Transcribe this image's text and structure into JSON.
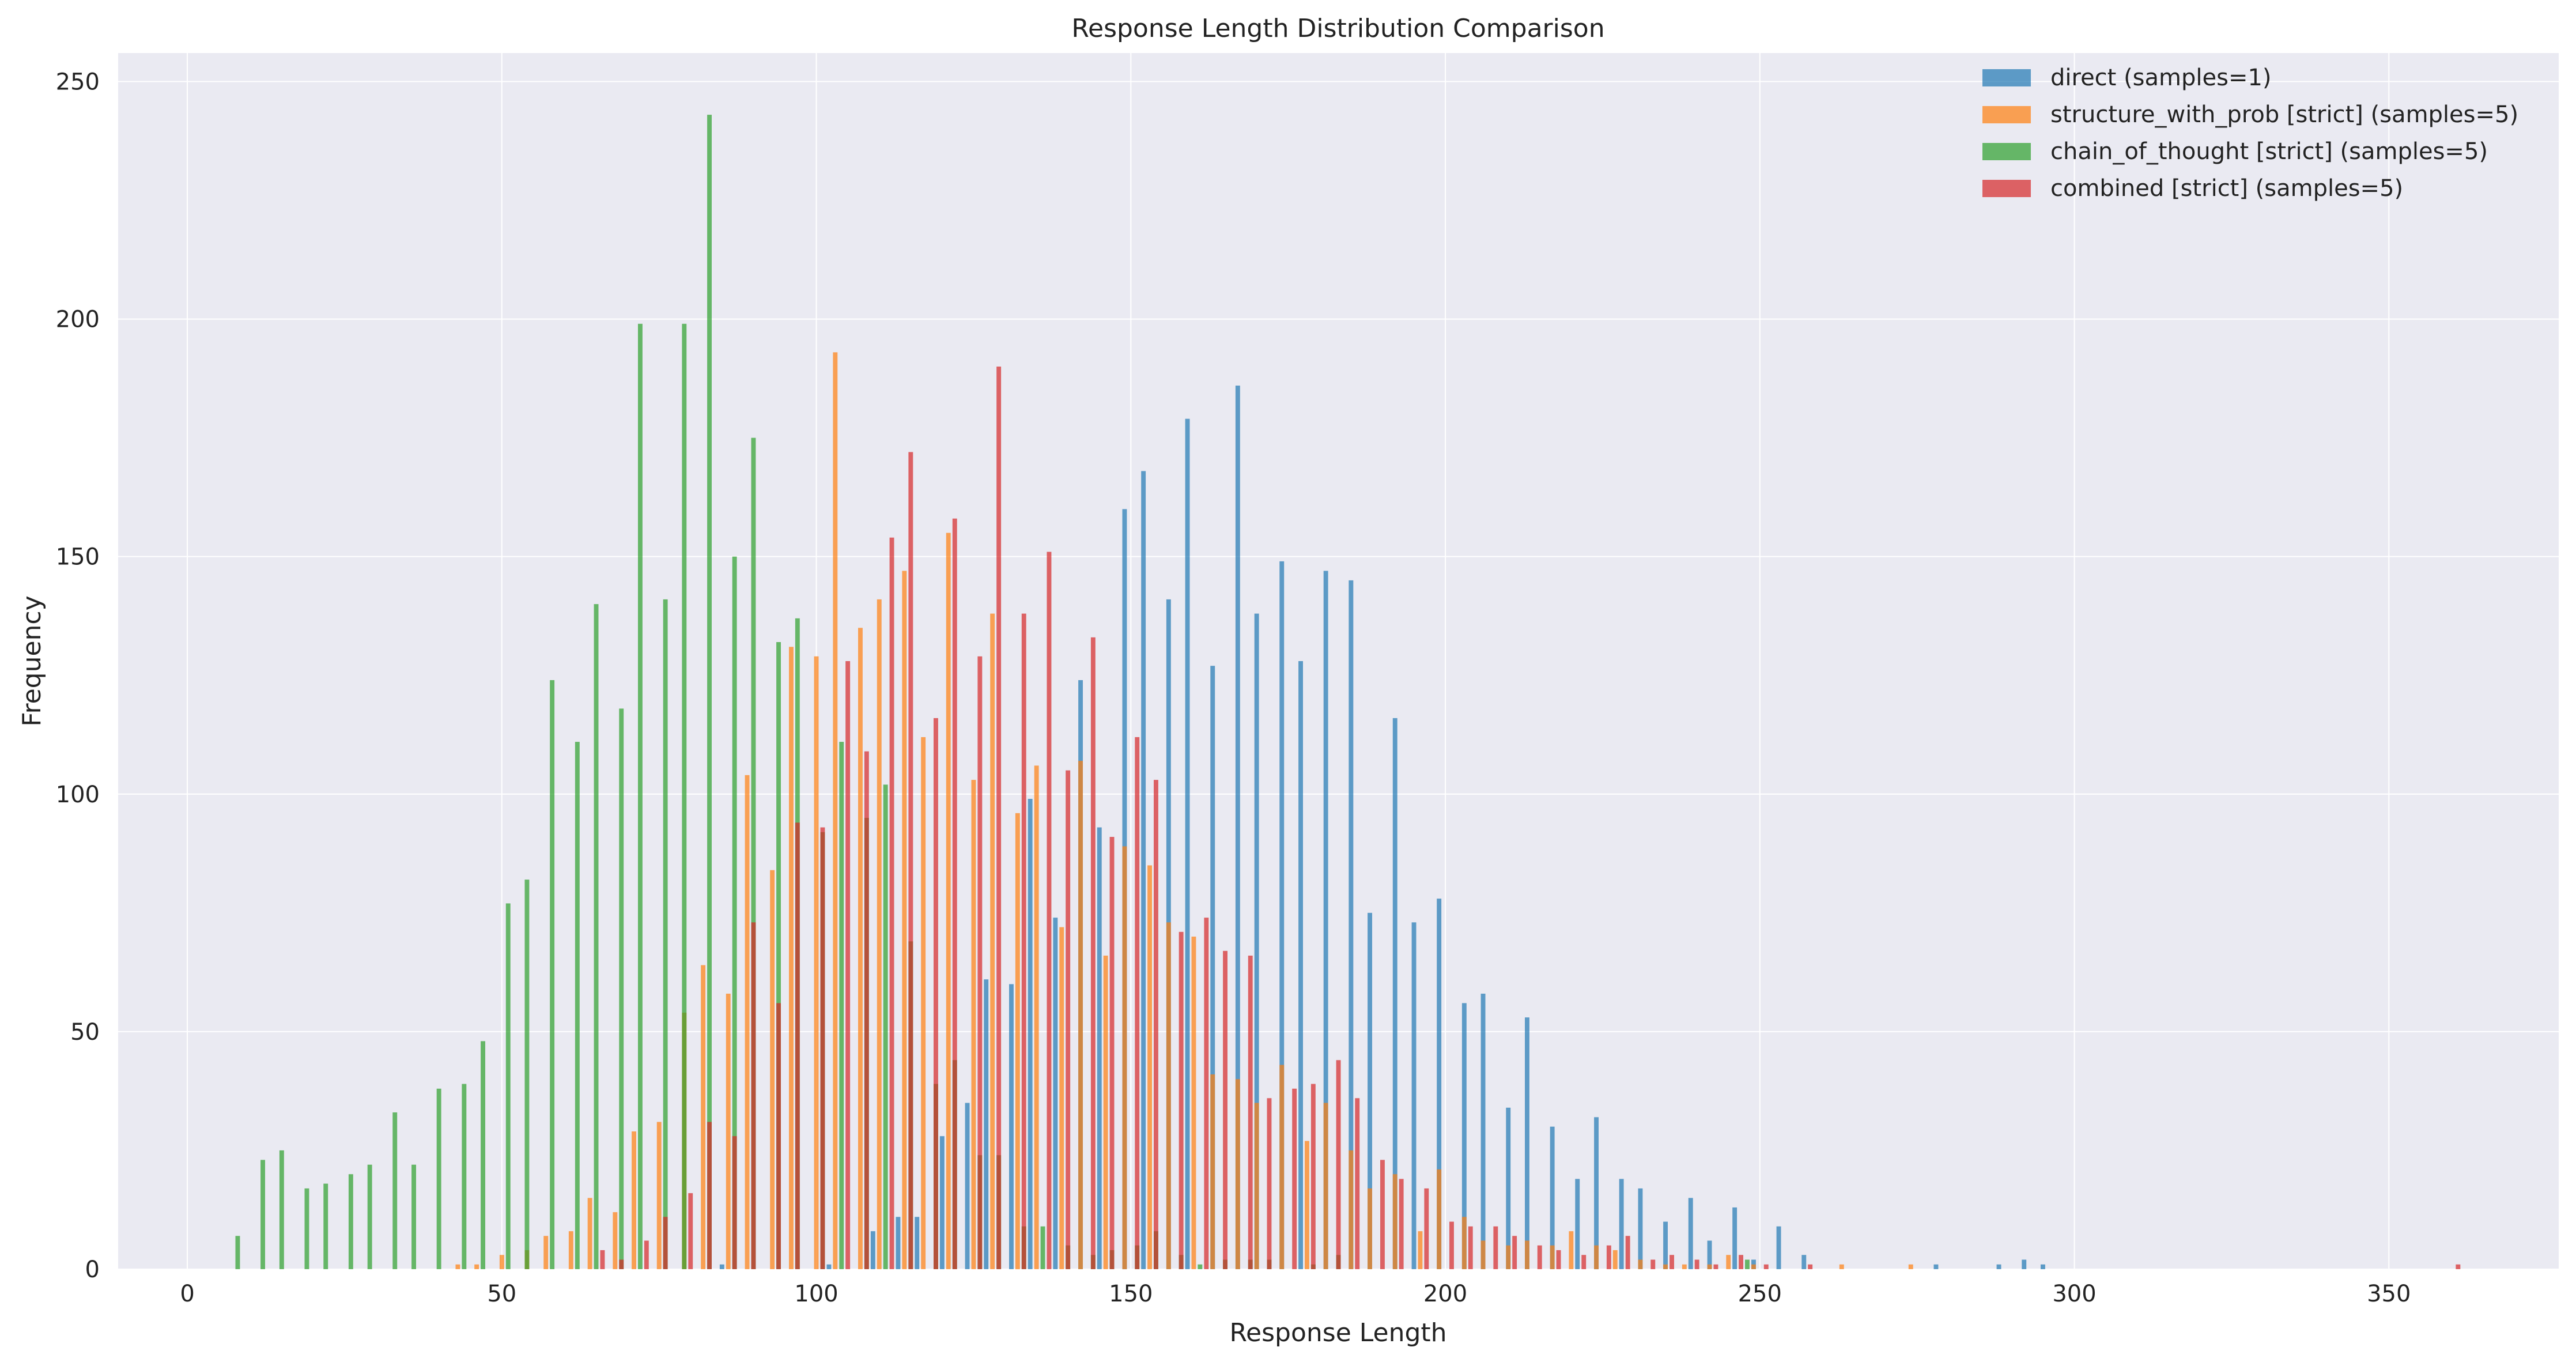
{
  "chart_data": {
    "type": "bar",
    "title": "Response Length Distribution Comparison",
    "xlabel": "Response Length",
    "ylabel": "Frequency",
    "xlim": [
      -11,
      377
    ],
    "ylim": [
      0,
      256
    ],
    "xticks": [
      0,
      50,
      100,
      150,
      200,
      250,
      300,
      350
    ],
    "yticks": [
      0,
      50,
      100,
      150,
      200,
      250
    ],
    "grid": true,
    "legend_position": "top-right",
    "bin_width": 3.6,
    "series": [
      {
        "name": "direct (samples=1)",
        "color": "#1f77b4",
        "points": [
          [
            85,
            1
          ],
          [
            102,
            1
          ],
          [
            109,
            8
          ],
          [
            113,
            11
          ],
          [
            116,
            11
          ],
          [
            120,
            28
          ],
          [
            124,
            35
          ],
          [
            127,
            61
          ],
          [
            131,
            60
          ],
          [
            134,
            99
          ],
          [
            138,
            74
          ],
          [
            142,
            124
          ],
          [
            145,
            93
          ],
          [
            149,
            160
          ],
          [
            152,
            168
          ],
          [
            156,
            141
          ],
          [
            159,
            179
          ],
          [
            163,
            127
          ],
          [
            167,
            186
          ],
          [
            170,
            138
          ],
          [
            174,
            149
          ],
          [
            177,
            128
          ],
          [
            181,
            147
          ],
          [
            185,
            145
          ],
          [
            188,
            75
          ],
          [
            192,
            116
          ],
          [
            195,
            73
          ],
          [
            199,
            78
          ],
          [
            203,
            56
          ],
          [
            206,
            58
          ],
          [
            210,
            34
          ],
          [
            213,
            53
          ],
          [
            217,
            30
          ],
          [
            221,
            19
          ],
          [
            224,
            32
          ],
          [
            228,
            19
          ],
          [
            231,
            17
          ],
          [
            235,
            10
          ],
          [
            239,
            15
          ],
          [
            242,
            6
          ],
          [
            246,
            13
          ],
          [
            249,
            2
          ],
          [
            253,
            9
          ],
          [
            257,
            3
          ],
          [
            278,
            1
          ],
          [
            288,
            1
          ],
          [
            292,
            2
          ],
          [
            295,
            1
          ]
        ]
      },
      {
        "name": "structure_with_prob [strict] (samples=5)",
        "color": "#ff7f0e",
        "points": [
          [
            43,
            1
          ],
          [
            46,
            1
          ],
          [
            50,
            3
          ],
          [
            54,
            4
          ],
          [
            57,
            7
          ],
          [
            61,
            8
          ],
          [
            64,
            15
          ],
          [
            68,
            12
          ],
          [
            71,
            29
          ],
          [
            75,
            31
          ],
          [
            79,
            54
          ],
          [
            82,
            64
          ],
          [
            86,
            58
          ],
          [
            89,
            104
          ],
          [
            93,
            84
          ],
          [
            96,
            131
          ],
          [
            100,
            129
          ],
          [
            103,
            193
          ],
          [
            107,
            135
          ],
          [
            110,
            141
          ],
          [
            114,
            147
          ],
          [
            117,
            112
          ],
          [
            121,
            155
          ],
          [
            125,
            103
          ],
          [
            128,
            138
          ],
          [
            132,
            96
          ],
          [
            135,
            106
          ],
          [
            139,
            72
          ],
          [
            142,
            107
          ],
          [
            146,
            66
          ],
          [
            149,
            89
          ],
          [
            153,
            85
          ],
          [
            156,
            73
          ],
          [
            160,
            70
          ],
          [
            163,
            41
          ],
          [
            167,
            40
          ],
          [
            170,
            35
          ],
          [
            174,
            43
          ],
          [
            178,
            27
          ],
          [
            181,
            35
          ],
          [
            185,
            25
          ],
          [
            188,
            17
          ],
          [
            192,
            20
          ],
          [
            196,
            8
          ],
          [
            199,
            21
          ],
          [
            203,
            11
          ],
          [
            206,
            6
          ],
          [
            210,
            5
          ],
          [
            213,
            6
          ],
          [
            217,
            5
          ],
          [
            220,
            8
          ],
          [
            224,
            5
          ],
          [
            227,
            4
          ],
          [
            231,
            2
          ],
          [
            235,
            1
          ],
          [
            238,
            1
          ],
          [
            242,
            1
          ],
          [
            245,
            3
          ],
          [
            249,
            1
          ],
          [
            263,
            1
          ],
          [
            274,
            1
          ]
        ]
      },
      {
        "name": "chain_of_thought [strict] (samples=5)",
        "color": "#2ca02c",
        "points": [
          [
            8,
            7
          ],
          [
            12,
            23
          ],
          [
            15,
            25
          ],
          [
            19,
            17
          ],
          [
            22,
            18
          ],
          [
            26,
            20
          ],
          [
            29,
            22
          ],
          [
            33,
            33
          ],
          [
            36,
            22
          ],
          [
            40,
            38
          ],
          [
            44,
            39
          ],
          [
            47,
            48
          ],
          [
            51,
            77
          ],
          [
            54,
            82
          ],
          [
            58,
            124
          ],
          [
            62,
            111
          ],
          [
            65,
            140
          ],
          [
            69,
            118
          ],
          [
            72,
            199
          ],
          [
            76,
            141
          ],
          [
            79,
            199
          ],
          [
            83,
            243
          ],
          [
            87,
            150
          ],
          [
            90,
            175
          ],
          [
            94,
            132
          ],
          [
            97,
            137
          ],
          [
            101,
            92
          ],
          [
            104,
            111
          ],
          [
            108,
            95
          ],
          [
            111,
            102
          ],
          [
            115,
            69
          ],
          [
            119,
            39
          ],
          [
            122,
            44
          ],
          [
            126,
            24
          ],
          [
            129,
            24
          ],
          [
            133,
            9
          ],
          [
            136,
            9
          ],
          [
            140,
            5
          ],
          [
            144,
            3
          ],
          [
            147,
            4
          ],
          [
            151,
            5
          ],
          [
            154,
            8
          ],
          [
            158,
            3
          ],
          [
            161,
            1
          ],
          [
            165,
            2
          ],
          [
            169,
            2
          ],
          [
            172,
            2
          ],
          [
            179,
            1
          ],
          [
            183,
            3
          ],
          [
            248,
            2
          ]
        ]
      },
      {
        "name": "combined [strict] (samples=5)",
        "color": "#d62728",
        "points": [
          [
            66,
            4
          ],
          [
            69,
            2
          ],
          [
            73,
            6
          ],
          [
            76,
            11
          ],
          [
            80,
            16
          ],
          [
            83,
            31
          ],
          [
            87,
            28
          ],
          [
            90,
            73
          ],
          [
            94,
            56
          ],
          [
            97,
            94
          ],
          [
            101,
            93
          ],
          [
            105,
            128
          ],
          [
            108,
            109
          ],
          [
            112,
            154
          ],
          [
            115,
            172
          ],
          [
            119,
            116
          ],
          [
            122,
            158
          ],
          [
            126,
            129
          ],
          [
            129,
            190
          ],
          [
            133,
            138
          ],
          [
            137,
            151
          ],
          [
            140,
            105
          ],
          [
            144,
            133
          ],
          [
            147,
            91
          ],
          [
            151,
            112
          ],
          [
            154,
            103
          ],
          [
            158,
            71
          ],
          [
            162,
            74
          ],
          [
            165,
            67
          ],
          [
            169,
            66
          ],
          [
            172,
            36
          ],
          [
            176,
            38
          ],
          [
            179,
            39
          ],
          [
            183,
            44
          ],
          [
            186,
            36
          ],
          [
            190,
            23
          ],
          [
            193,
            19
          ],
          [
            197,
            17
          ],
          [
            201,
            10
          ],
          [
            204,
            9
          ],
          [
            208,
            9
          ],
          [
            211,
            7
          ],
          [
            215,
            5
          ],
          [
            218,
            4
          ],
          [
            222,
            3
          ],
          [
            226,
            5
          ],
          [
            229,
            7
          ],
          [
            233,
            2
          ],
          [
            236,
            3
          ],
          [
            240,
            2
          ],
          [
            243,
            1
          ],
          [
            247,
            3
          ],
          [
            251,
            1
          ],
          [
            258,
            1
          ],
          [
            361,
            1
          ]
        ]
      }
    ]
  }
}
